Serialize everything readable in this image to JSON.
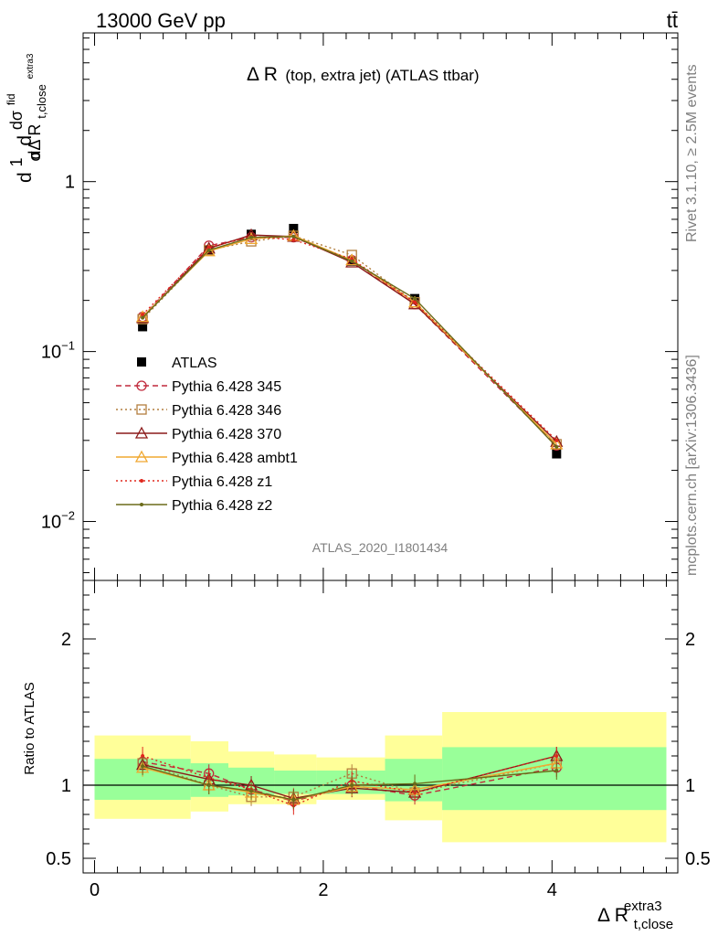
{
  "header": {
    "energy_label": "13000 GeV pp",
    "process_label": "tt̄"
  },
  "side": {
    "rivet_label": "Rivet 3.1.10, ≥ 2.5M events",
    "mcplots_label": "mcplots.cern.ch [arXiv:1306.3436]"
  },
  "chart_data": [
    {
      "type": "line",
      "panel": "main",
      "title_main": "Δ R",
      "title_sub": "(top, extra jet) (ATLAS ttbar)",
      "analysis_label": "ATLAS_2020_I1801434",
      "ylabel_parts": {
        "d": "d",
        "one": "1",
        "sigma": "σ",
        "dsig": "dσ",
        "fid": "fid",
        "dDeltaR": "dΔ R",
        "sub": "t,close",
        "sup": "extra3"
      },
      "yscale": "log",
      "ylim": [
        0.0045,
        7.5
      ],
      "yticks": [
        {
          "value": 1,
          "label": "1"
        },
        {
          "value": 0.1,
          "label": "10",
          "exp": "−1"
        },
        {
          "value": 0.01,
          "label": "10",
          "exp": "−2"
        }
      ],
      "xlim": [
        -0.1,
        5.1
      ],
      "x": [
        0.42,
        1.0,
        1.37,
        1.74,
        2.25,
        2.8,
        4.04
      ],
      "series": [
        {
          "name": "ATLAS",
          "color": "#000000",
          "marker": "square-filled",
          "line": "none",
          "values": [
            0.14,
            0.395,
            0.49,
            0.53,
            0.34,
            0.205,
            0.025
          ]
        },
        {
          "name": "Pythia 6.428 345",
          "color": "#c0293b",
          "marker": "circle-open",
          "line": "dashed",
          "values": [
            0.16,
            0.42,
            0.47,
            0.47,
            0.345,
            0.19,
            0.028
          ]
        },
        {
          "name": "Pythia 6.428 346",
          "color": "#b37e3e",
          "marker": "square-open",
          "line": "dotted",
          "values": [
            0.155,
            0.395,
            0.445,
            0.48,
            0.37,
            0.195,
            0.0285
          ]
        },
        {
          "name": "Pythia 6.428 370",
          "color": "#8b1a1a",
          "marker": "triangle-open",
          "line": "solid",
          "values": [
            0.158,
            0.405,
            0.485,
            0.475,
            0.335,
            0.19,
            0.0295
          ]
        },
        {
          "name": "Pythia 6.428 ambt1",
          "color": "#f0a830",
          "marker": "triangle-open",
          "line": "solid",
          "values": [
            0.16,
            0.39,
            0.46,
            0.48,
            0.345,
            0.195,
            0.0285
          ]
        },
        {
          "name": "Pythia 6.428 z1",
          "color": "#e0281e",
          "marker": "dot",
          "line": "dotted",
          "values": [
            0.165,
            0.41,
            0.475,
            0.455,
            0.35,
            0.195,
            0.03
          ]
        },
        {
          "name": "Pythia 6.428 z2",
          "color": "#6b6b1a",
          "marker": "dot",
          "line": "solid",
          "values": [
            0.158,
            0.395,
            0.47,
            0.475,
            0.34,
            0.205,
            0.0275
          ]
        }
      ]
    },
    {
      "type": "line",
      "panel": "ratio",
      "ylabel": "Ratio to ATLAS",
      "xlabel_main": "Δ R",
      "xlabel_sub": "t,close",
      "xlabel_sup": "extra3",
      "ylim": [
        0.4,
        2.4
      ],
      "yticks": [
        {
          "value": 0.5,
          "label": "0.5"
        },
        {
          "value": 1,
          "label": "1"
        },
        {
          "value": 2,
          "label": "2"
        }
      ],
      "xlim": [
        -0.1,
        5.1
      ],
      "xticks": [
        {
          "value": 0,
          "label": "0"
        },
        {
          "value": 2,
          "label": "2"
        },
        {
          "value": 4,
          "label": "4"
        }
      ],
      "bands": [
        {
          "x0": 0.0,
          "x1": 0.84,
          "inner": [
            0.9,
            1.18
          ],
          "outer": [
            0.77,
            1.34
          ]
        },
        {
          "x0": 0.84,
          "x1": 1.17,
          "inner": [
            0.92,
            1.15
          ],
          "outer": [
            0.82,
            1.3
          ]
        },
        {
          "x0": 1.17,
          "x1": 1.57,
          "inner": [
            0.93,
            1.12
          ],
          "outer": [
            0.87,
            1.23
          ]
        },
        {
          "x0": 1.57,
          "x1": 1.94,
          "inner": [
            0.94,
            1.1
          ],
          "outer": [
            0.87,
            1.21
          ]
        },
        {
          "x0": 1.94,
          "x1": 2.54,
          "inner": [
            0.94,
            1.1
          ],
          "outer": [
            0.9,
            1.19
          ]
        },
        {
          "x0": 2.54,
          "x1": 3.04,
          "inner": [
            0.89,
            1.18
          ],
          "outer": [
            0.76,
            1.34
          ]
        },
        {
          "x0": 3.04,
          "x1": 5.0,
          "inner": [
            0.83,
            1.26
          ],
          "outer": [
            0.61,
            1.5
          ]
        }
      ],
      "x": [
        0.42,
        1.0,
        1.37,
        1.74,
        2.25,
        2.8,
        4.04
      ],
      "series": [
        {
          "name": "Pythia 6.428 345",
          "color": "#c0293b",
          "marker": "circle-open",
          "line": "dashed",
          "values": [
            1.16,
            1.08,
            0.97,
            0.89,
            1.0,
            0.93,
            1.12
          ]
        },
        {
          "name": "Pythia 6.428 346",
          "color": "#b37e3e",
          "marker": "square-open",
          "line": "dotted",
          "values": [
            1.15,
            1.0,
            0.92,
            0.92,
            1.08,
            0.95,
            1.15
          ]
        },
        {
          "name": "Pythia 6.428 370",
          "color": "#8b1a1a",
          "marker": "triangle-open",
          "line": "solid",
          "values": [
            1.14,
            1.04,
            1.0,
            0.91,
            0.98,
            0.95,
            1.2
          ]
        },
        {
          "name": "Pythia 6.428 ambt1",
          "color": "#f0a830",
          "marker": "triangle-open",
          "line": "solid",
          "values": [
            1.12,
            1.0,
            0.95,
            0.9,
            0.99,
            0.97,
            1.15
          ]
        },
        {
          "name": "Pythia 6.428 z1",
          "color": "#e0281e",
          "marker": "dot",
          "line": "dotted",
          "values": [
            1.2,
            1.05,
            0.97,
            0.86,
            1.03,
            0.95,
            1.2
          ]
        },
        {
          "name": "Pythia 6.428 z2",
          "color": "#6b6b1a",
          "marker": "dot",
          "line": "solid",
          "values": [
            1.13,
            1.0,
            0.96,
            0.9,
            1.0,
            1.01,
            1.1
          ]
        }
      ]
    }
  ]
}
